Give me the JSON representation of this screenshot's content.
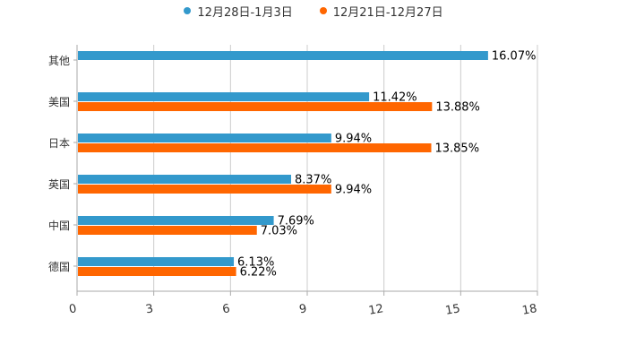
{
  "chart_data": {
    "type": "bar",
    "orientation": "horizontal",
    "categories": [
      "其他",
      "美国",
      "日本",
      "英国",
      "中国",
      "德国"
    ],
    "series": [
      {
        "name": "12月28日-1月3日",
        "color": "#3399cc",
        "values": [
          16.07,
          11.42,
          9.94,
          8.37,
          7.69,
          6.13
        ],
        "labels": [
          "16.07%",
          "11.42%",
          "9.94%",
          "8.37%",
          "7.69%",
          "6.13%"
        ]
      },
      {
        "name": "12月21日-12月27日",
        "color": "#ff6600",
        "values": [
          null,
          13.88,
          13.85,
          9.94,
          7.03,
          6.22
        ],
        "labels": [
          "",
          "13.88%",
          "13.85%",
          "9.94%",
          "7.03%",
          "6.22%"
        ]
      }
    ],
    "xaxis": {
      "min": 0,
      "max": 18,
      "ticks": [
        0,
        3,
        6,
        9,
        12,
        15,
        18
      ]
    },
    "legend_position": "top-center",
    "grid": true
  }
}
